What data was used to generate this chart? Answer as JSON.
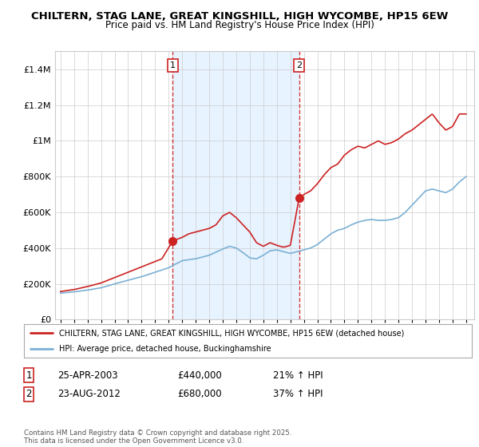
{
  "title_line1": "CHILTERN, STAG LANE, GREAT KINGSHILL, HIGH WYCOMBE, HP15 6EW",
  "title_line2": "Price paid vs. HM Land Registry's House Price Index (HPI)",
  "red_color": "#cc2222",
  "blue_color": "#7ab0d4",
  "vline_color": "#cc2222",
  "shade_color": "#ddeeff",
  "background_color": "#ffffff",
  "plot_bg_color": "#ffffff",
  "grid_color": "#cccccc",
  "vline1_x": 2003.3,
  "vline2_x": 2012.65,
  "sale1_y": 440000,
  "sale2_y": 680000,
  "ylim": [
    0,
    1500000
  ],
  "yticks": [
    0,
    200000,
    400000,
    600000,
    800000,
    1000000,
    1200000,
    1400000
  ],
  "xlim_min": 1994.6,
  "xlim_max": 2025.6,
  "legend_red": "CHILTERN, STAG LANE, GREAT KINGSHILL, HIGH WYCOMBE, HP15 6EW (detached house)",
  "legend_blue": "HPI: Average price, detached house, Buckinghamshire",
  "annotation1_label": "1",
  "annotation1_date": "25-APR-2003",
  "annotation1_price": "£440,000",
  "annotation1_hpi": "21% ↑ HPI",
  "annotation2_label": "2",
  "annotation2_date": "23-AUG-2012",
  "annotation2_price": "£680,000",
  "annotation2_hpi": "37% ↑ HPI",
  "footer": "Contains HM Land Registry data © Crown copyright and database right 2025.\nThis data is licensed under the Open Government Licence v3.0."
}
